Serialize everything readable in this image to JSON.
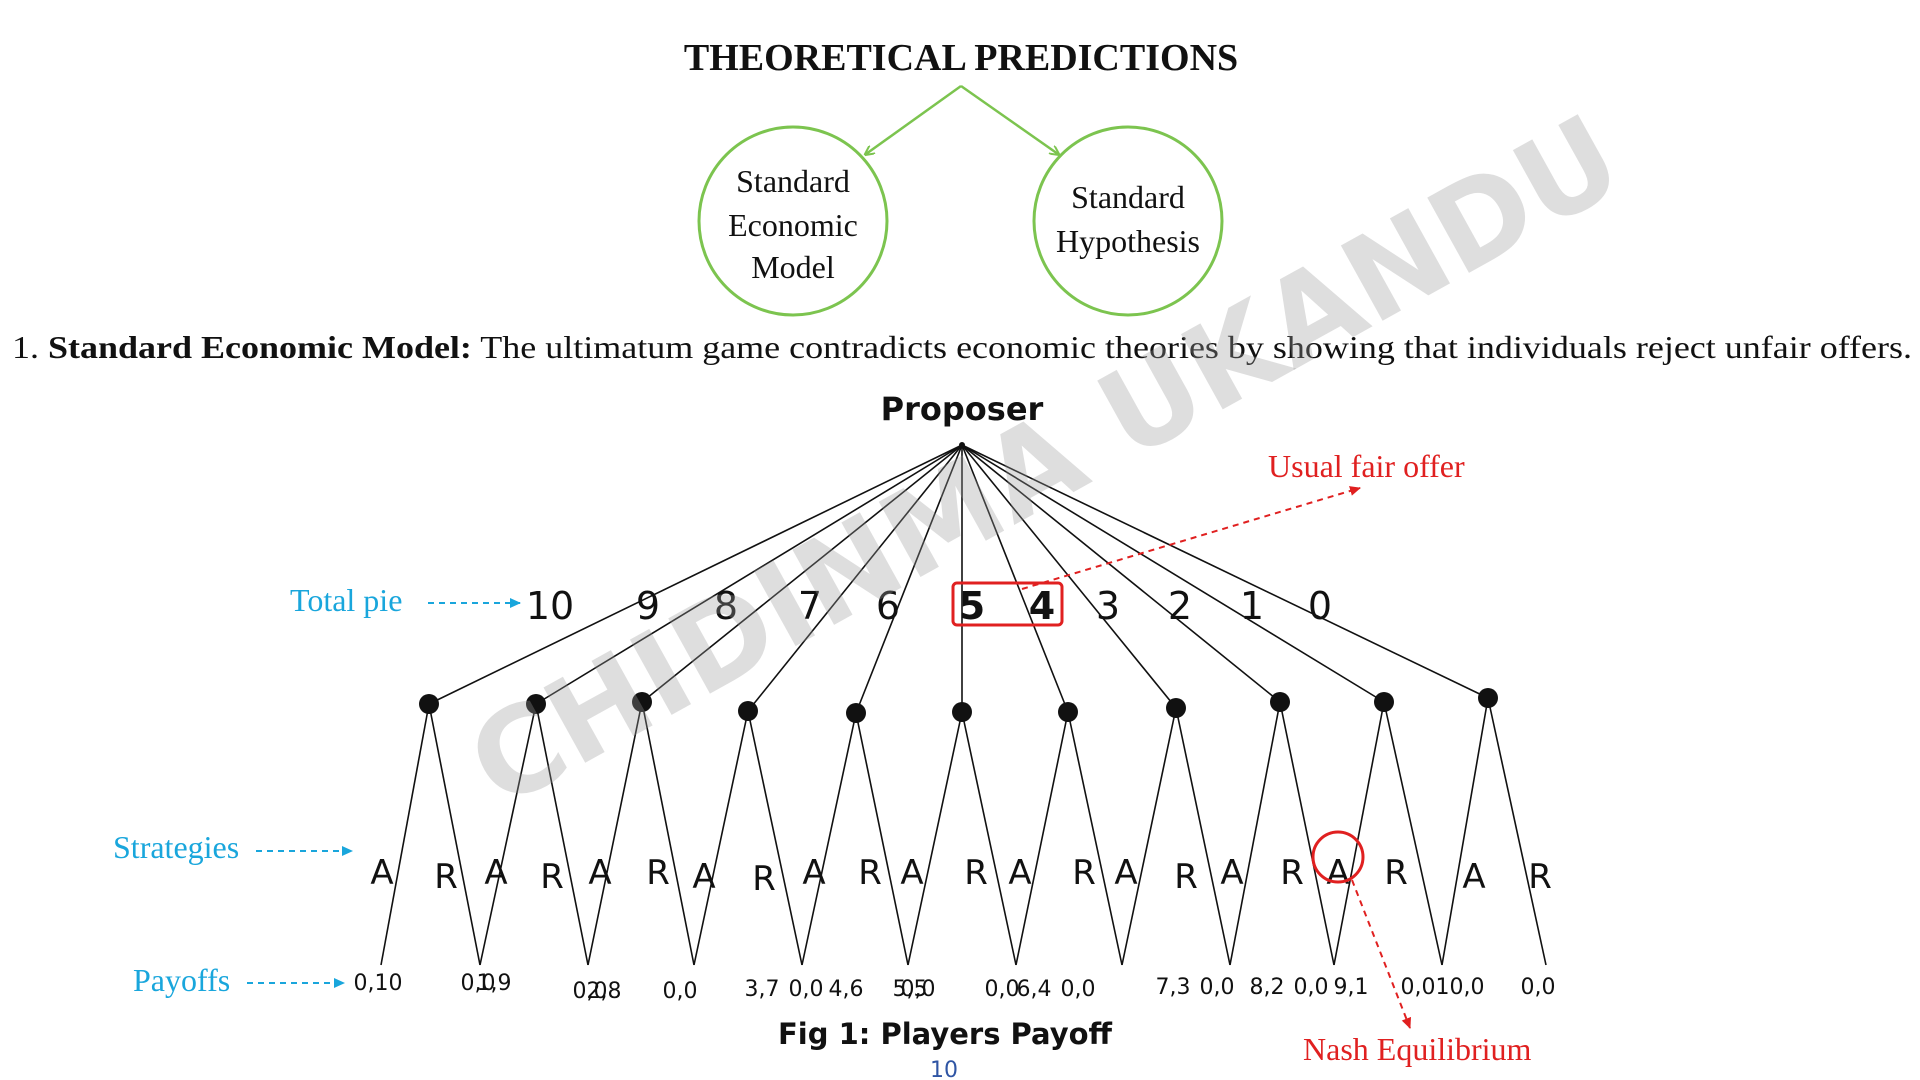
{
  "title": "THEORETICAL PREDICTIONS",
  "circles": {
    "left": [
      "Standard",
      "Economic",
      "Model"
    ],
    "right": [
      "Standard",
      "Hypothesis"
    ]
  },
  "paragraph": {
    "number": "1.",
    "bold": "Standard Economic Model:",
    "text": "The ultimatum game contradicts economic theories by showing that individuals reject unfair offers."
  },
  "tree": {
    "root_label": "Proposer",
    "offers": [
      "10",
      "9",
      "8",
      "7",
      "6",
      "5",
      "4",
      "3",
      "2",
      "1",
      "0"
    ],
    "highlighted_offers": [
      "5",
      "4"
    ],
    "strategies": [
      "A",
      "R",
      "A",
      "R",
      "A",
      "R",
      "A",
      "R",
      "A",
      "R",
      "A",
      "R",
      "A",
      "R",
      "A",
      "R",
      "A",
      "R",
      "A",
      "R",
      "A",
      "R"
    ],
    "nash_strategy_index": 18,
    "payoffs": [
      "0,10",
      "0,0",
      "1,9",
      "0,0",
      "2,8",
      "0,0",
      "3,7",
      "0,0",
      "4,6",
      "5,5",
      "0,0",
      "0,0",
      "6,4",
      "0,0",
      "7,3",
      "0,0",
      "8,2",
      "0,0",
      "9,1",
      "0,0",
      "10,0",
      "0,0"
    ],
    "side_labels": {
      "total_pie": "Total pie",
      "strategies": "Strategies",
      "payoffs": "Payoffs"
    },
    "annotations": {
      "usual_fair_offer": "Usual fair offer",
      "nash_equilibrium": "Nash Equilibrium"
    }
  },
  "caption": "Fig 1: Players Payoff",
  "page_number": "10",
  "watermark": "CHIDINMA UKANDU",
  "colors": {
    "green": "#7cc44f",
    "red": "#e02020",
    "blue": "#19a6dc",
    "ink": "#111111",
    "page_number": "#2f55a4"
  }
}
